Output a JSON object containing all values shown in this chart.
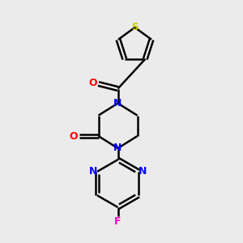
{
  "bg_color": "#ebebeb",
  "bond_color": "#000000",
  "N_color": "#0000ff",
  "O_color": "#ff0000",
  "S_color": "#cccc00",
  "F_color": "#ff00cc",
  "line_width": 1.8,
  "figsize": [
    3.0,
    3.0
  ],
  "dpi": 100,
  "xlim": [
    0,
    10
  ],
  "ylim": [
    0,
    10
  ]
}
